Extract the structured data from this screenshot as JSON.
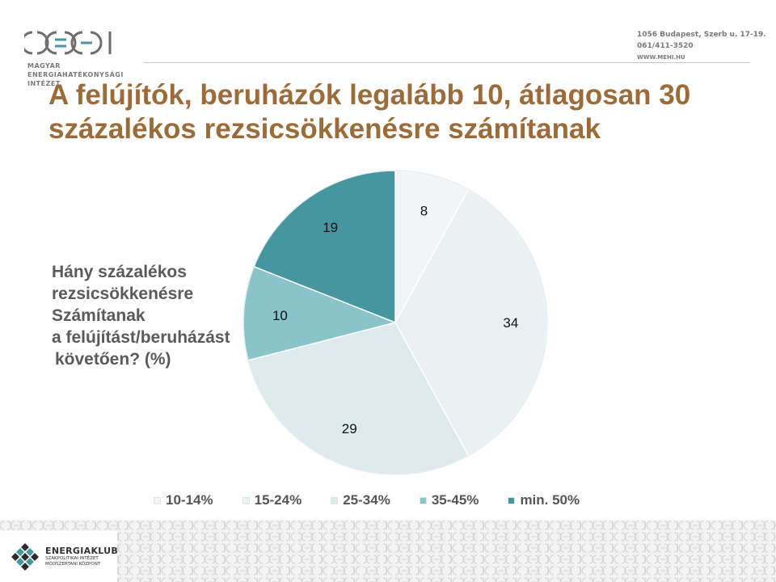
{
  "header": {
    "logo_text": "MEHI",
    "logo_sub": [
      "MAGYAR",
      "ENERGIAHATÉKONYSÁGI",
      "INTÉZET"
    ],
    "contact": [
      "1056 Budapest, Szerb u. 17-19.",
      "061/411-3520",
      "WWW.MEHI.HU"
    ]
  },
  "title": "A felújítók, beruházók legalább 10, átlagosan 30 százalékos rezsicsökkenésre számítanak",
  "question": [
    "Hány százalékos",
    "rezsicsökkenésre",
    "Számítanak",
    "a felújítást/beruházást",
    "követően?  (%)"
  ],
  "chart_data": {
    "type": "pie",
    "title": "",
    "categories": [
      "10-14%",
      "15-24%",
      "25-34%",
      "35-45%",
      "min. 50%"
    ],
    "values": [
      8,
      34,
      29,
      10,
      19
    ],
    "value_labels": [
      "8",
      "34",
      "29",
      "10",
      "19"
    ],
    "colors": [
      "#f2f5f6",
      "#e9f1f3",
      "#ddebee",
      "#8ac4cb",
      "#45969f"
    ],
    "start_angle_deg": 0,
    "order_note_clockwise_from_top": [
      "10-14%",
      "15-24%",
      "25-34%",
      "35-45%",
      "min. 50%"
    ],
    "legend_position": "bottom"
  },
  "footer": {
    "org_name": "ENERGIAKLUB",
    "org_sub": [
      "SZAKPOLITIKAI INTÉZET",
      "MÓDSZERTANI KÖZPONT"
    ],
    "pattern_icon": "mehi-logo-pattern"
  }
}
